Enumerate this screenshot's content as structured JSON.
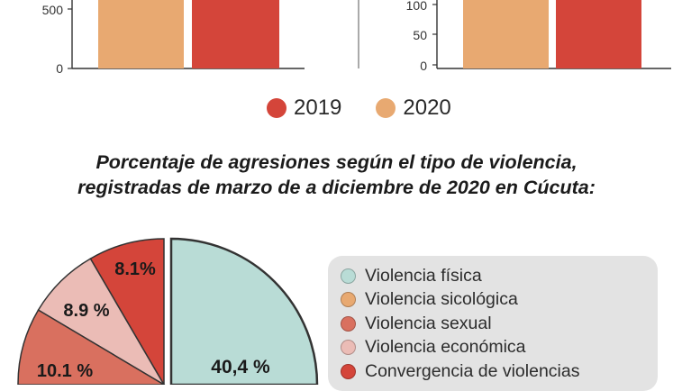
{
  "chart_data": [
    {
      "type": "bar",
      "title": "",
      "yticks": [
        "500",
        "0"
      ],
      "series": [
        {
          "name": "2020",
          "color": "#e8a971"
        },
        {
          "name": "2019",
          "color": "#d4453a"
        }
      ]
    },
    {
      "type": "bar",
      "title": "",
      "yticks": [
        "100",
        "50",
        "0"
      ],
      "series": [
        {
          "name": "2020",
          "color": "#e8a971"
        },
        {
          "name": "2019",
          "color": "#d4453a"
        }
      ]
    },
    {
      "type": "pie",
      "title_line1": "Porcentaje de agresiones según el tipo de violencia,",
      "title_line2": "registradas de marzo de a diciembre de 2020 en Cúcuta:",
      "slices": [
        {
          "label": "Violencia física",
          "value": 40.4,
          "display": "40,4 %",
          "color": "#b9dcd6"
        },
        {
          "label": "Violencia sicológica",
          "value": null,
          "display": "",
          "color": "#e8a971"
        },
        {
          "label": "Violencia sexual",
          "value": 10.1,
          "display": "10.1 %",
          "color": "#d9705f"
        },
        {
          "label": "Violencia económica",
          "value": 8.9,
          "display": "8.9 %",
          "color": "#ebbcb6"
        },
        {
          "label": "Convergencia de violencias",
          "value": 8.1,
          "display": "8.1%",
          "color": "#d4453a"
        }
      ]
    }
  ],
  "legend_top": [
    {
      "label": "2019",
      "color": "#d4453a"
    },
    {
      "label": "2020",
      "color": "#e8a971"
    }
  ]
}
